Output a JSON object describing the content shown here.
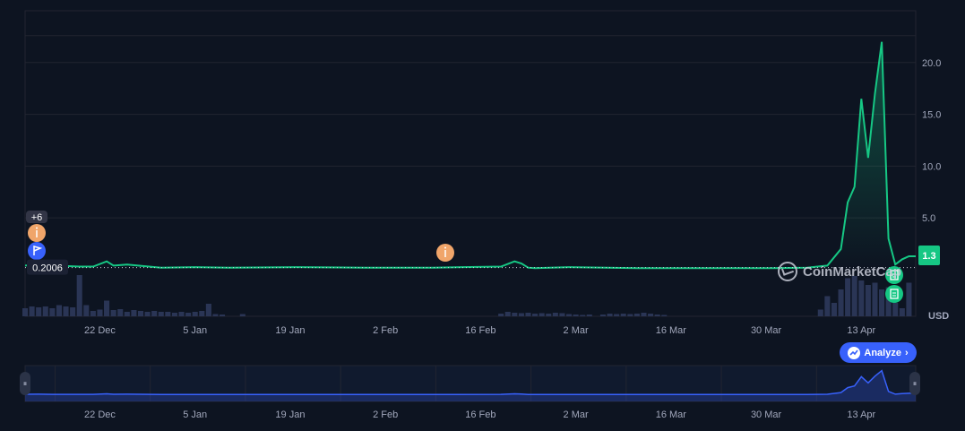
{
  "chart_data": {
    "type": "line",
    "currency_label": "USD",
    "current_price_label": "1.3",
    "reference_price_label": "0.2006",
    "reference_price": 0.2006,
    "ylim": [
      -4.5,
      25
    ],
    "y_ticks": [
      "5.0",
      "10.0",
      "15.0",
      "20.0"
    ],
    "y_tick_values": [
      5,
      10,
      15,
      20
    ],
    "x_ticks": [
      "22 Dec",
      "5 Jan",
      "19 Jan",
      "2 Feb",
      "16 Feb",
      "2 Mar",
      "16 Mar",
      "30 Mar",
      "13 Apr"
    ],
    "x_tick_days": [
      11,
      25,
      39,
      53,
      67,
      81,
      95,
      109,
      123
    ],
    "x_range_days": [
      0,
      131
    ],
    "price_series": {
      "x_days": [
        0,
        2,
        4,
        6,
        8,
        10,
        12,
        13,
        15,
        20,
        25,
        30,
        40,
        50,
        60,
        70,
        72,
        73,
        74,
        75,
        80,
        90,
        100,
        110,
        115,
        118,
        120,
        121,
        122,
        123,
        124,
        125,
        126,
        127,
        128,
        129,
        130,
        131
      ],
      "values": [
        0.4,
        0.5,
        0.3,
        0.35,
        0.3,
        0.3,
        0.8,
        0.4,
        0.5,
        0.2,
        0.25,
        0.2,
        0.25,
        0.2,
        0.2,
        0.3,
        0.8,
        0.6,
        0.2,
        0.15,
        0.25,
        0.15,
        0.15,
        0.15,
        0.2,
        0.4,
        2.0,
        6.5,
        8.0,
        16.5,
        10.8,
        17,
        22,
        3,
        0.5,
        1.0,
        1.3,
        1.3
      ]
    },
    "volume_bars": [
      {
        "day": 0,
        "v": 0.18
      },
      {
        "day": 1,
        "v": 0.22
      },
      {
        "day": 2,
        "v": 0.2
      },
      {
        "day": 3,
        "v": 0.22
      },
      {
        "day": 4,
        "v": 0.18
      },
      {
        "day": 5,
        "v": 0.25
      },
      {
        "day": 6,
        "v": 0.22
      },
      {
        "day": 7,
        "v": 0.2
      },
      {
        "day": 8,
        "v": 0.92
      },
      {
        "day": 9,
        "v": 0.25
      },
      {
        "day": 10,
        "v": 0.12
      },
      {
        "day": 11,
        "v": 0.15
      },
      {
        "day": 12,
        "v": 0.35
      },
      {
        "day": 13,
        "v": 0.14
      },
      {
        "day": 14,
        "v": 0.16
      },
      {
        "day": 15,
        "v": 0.1
      },
      {
        "day": 16,
        "v": 0.14
      },
      {
        "day": 17,
        "v": 0.12
      },
      {
        "day": 18,
        "v": 0.1
      },
      {
        "day": 19,
        "v": 0.12
      },
      {
        "day": 20,
        "v": 0.1
      },
      {
        "day": 21,
        "v": 0.1
      },
      {
        "day": 22,
        "v": 0.08
      },
      {
        "day": 23,
        "v": 0.1
      },
      {
        "day": 24,
        "v": 0.08
      },
      {
        "day": 25,
        "v": 0.1
      },
      {
        "day": 26,
        "v": 0.12
      },
      {
        "day": 27,
        "v": 0.28
      },
      {
        "day": 28,
        "v": 0.05
      },
      {
        "day": 29,
        "v": 0.04
      },
      {
        "day": 32,
        "v": 0.05
      },
      {
        "day": 70,
        "v": 0.06
      },
      {
        "day": 71,
        "v": 0.1
      },
      {
        "day": 72,
        "v": 0.08
      },
      {
        "day": 73,
        "v": 0.07
      },
      {
        "day": 74,
        "v": 0.08
      },
      {
        "day": 75,
        "v": 0.06
      },
      {
        "day": 76,
        "v": 0.07
      },
      {
        "day": 77,
        "v": 0.06
      },
      {
        "day": 78,
        "v": 0.08
      },
      {
        "day": 79,
        "v": 0.07
      },
      {
        "day": 80,
        "v": 0.05
      },
      {
        "day": 81,
        "v": 0.04
      },
      {
        "day": 82,
        "v": 0.03
      },
      {
        "day": 83,
        "v": 0.04
      },
      {
        "day": 85,
        "v": 0.04
      },
      {
        "day": 86,
        "v": 0.06
      },
      {
        "day": 87,
        "v": 0.05
      },
      {
        "day": 88,
        "v": 0.06
      },
      {
        "day": 89,
        "v": 0.05
      },
      {
        "day": 90,
        "v": 0.06
      },
      {
        "day": 91,
        "v": 0.08
      },
      {
        "day": 92,
        "v": 0.06
      },
      {
        "day": 93,
        "v": 0.04
      },
      {
        "day": 94,
        "v": 0.03
      },
      {
        "day": 117,
        "v": 0.15
      },
      {
        "day": 118,
        "v": 0.45
      },
      {
        "day": 119,
        "v": 0.3
      },
      {
        "day": 120,
        "v": 0.6
      },
      {
        "day": 121,
        "v": 0.85
      },
      {
        "day": 122,
        "v": 0.9
      },
      {
        "day": 123,
        "v": 0.8
      },
      {
        "day": 124,
        "v": 0.7
      },
      {
        "day": 125,
        "v": 0.75
      },
      {
        "day": 126,
        "v": 0.6
      },
      {
        "day": 127,
        "v": 0.65
      },
      {
        "day": 128,
        "v": 0.3
      },
      {
        "day": 129,
        "v": 0.18
      },
      {
        "day": 130,
        "v": 0.75
      }
    ],
    "events": [
      {
        "day": 1,
        "kind": "info",
        "badge_count": "+6"
      },
      {
        "day": 1,
        "kind": "flag"
      },
      {
        "day": 65,
        "kind": "info"
      },
      {
        "day": 129,
        "kind": "document"
      },
      {
        "day": 129,
        "kind": "document"
      }
    ]
  },
  "watermark": "CoinMarketCap",
  "analyze_button": {
    "label": "Analyze",
    "chevron": "›"
  },
  "colors": {
    "background": "#0d1421",
    "line": "#16c784",
    "grid": "#222531",
    "volume": "#2a3555",
    "navigator_line": "#3861fb",
    "info_marker": "#f0a56a",
    "flag_marker": "#3861fb",
    "doc_marker": "#16c784"
  }
}
